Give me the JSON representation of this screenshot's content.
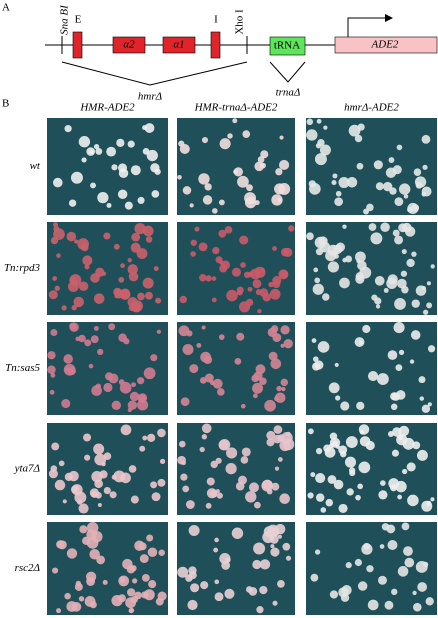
{
  "panel_a": {
    "label": "A",
    "sites": [
      "Sna BI",
      "Xho I"
    ],
    "elements": [
      "E",
      "α2",
      "α1",
      "I"
    ],
    "trna": "tRNA",
    "gene": "ADE2",
    "deletions": [
      "hmrΔ",
      "trnaΔ"
    ]
  },
  "panel_b": {
    "label": "B",
    "columns": [
      "HMR-ADE2",
      "HMR-trnaΔ-ADE2",
      "hmrΔ-ADE2"
    ],
    "rows": [
      "wt",
      "Tn:rpd3",
      "Tn:sas5",
      "yta7Δ",
      "rsc2Δ"
    ]
  }
}
